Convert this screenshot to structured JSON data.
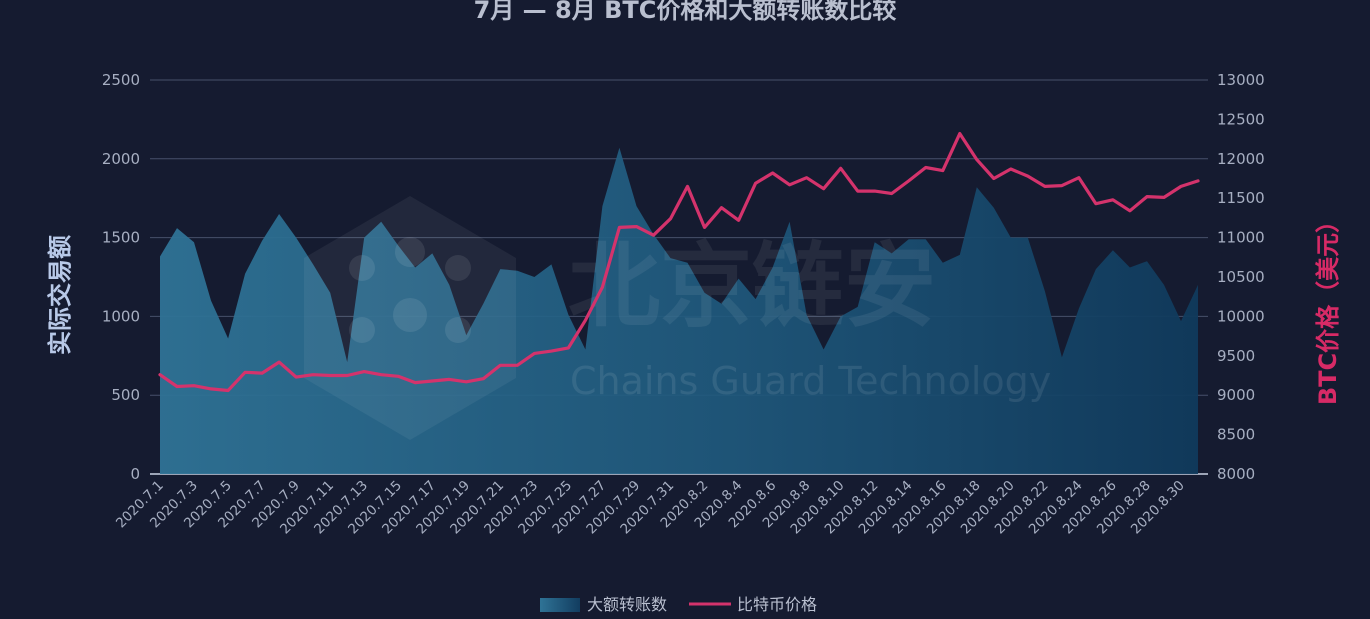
{
  "chart_data": {
    "type": "line",
    "title": "7月 — 8月 BTC价格和大额转账数比较",
    "y_left_label": "实际交易额",
    "y_right_label": "BTC价格（美元）",
    "y_left_range": [
      0,
      2500
    ],
    "y_left_ticks": [
      "0",
      "500",
      "1000",
      "1500",
      "2000",
      "2500"
    ],
    "y_right_range": [
      8000,
      13000
    ],
    "y_right_ticks": [
      "8000",
      "8500",
      "9000",
      "9500",
      "10000",
      "10500",
      "11000",
      "11500",
      "12000",
      "12500",
      "13000"
    ],
    "grid": true,
    "x": [
      "2020.7.1",
      "2020.7.2",
      "2020.7.3",
      "2020.7.4",
      "2020.7.5",
      "2020.7.6",
      "2020.7.7",
      "2020.7.8",
      "2020.7.9",
      "2020.7.10",
      "2020.7.11",
      "2020.7.12",
      "2020.7.13",
      "2020.7.14",
      "2020.7.15",
      "2020.7.16",
      "2020.7.17",
      "2020.7.18",
      "2020.7.19",
      "2020.7.20",
      "2020.7.21",
      "2020.7.22",
      "2020.7.23",
      "2020.7.24",
      "2020.7.25",
      "2020.7.26",
      "2020.7.27",
      "2020.7.28",
      "2020.7.29",
      "2020.7.30",
      "2020.7.31",
      "2020.8.1",
      "2020.8.2",
      "2020.8.3",
      "2020.8.4",
      "2020.8.5",
      "2020.8.6",
      "2020.8.7",
      "2020.8.8",
      "2020.8.9",
      "2020.8.10",
      "2020.8.11",
      "2020.8.12",
      "2020.8.13",
      "2020.8.14",
      "2020.8.15",
      "2020.8.16",
      "2020.8.17",
      "2020.8.18",
      "2020.8.19",
      "2020.8.20",
      "2020.8.21",
      "2020.8.22",
      "2020.8.23",
      "2020.8.24",
      "2020.8.25",
      "2020.8.26",
      "2020.8.27",
      "2020.8.28",
      "2020.8.29",
      "2020.8.30",
      "2020.8.31"
    ],
    "x_tick_labels": [
      "2020.7.1",
      "2020.7.3",
      "2020.7.5",
      "2020.7.7",
      "2020.7.9",
      "2020.7.11",
      "2020.7.13",
      "2020.7.15",
      "2020.7.17",
      "2020.7.19",
      "2020.7.21",
      "2020.7.23",
      "2020.7.25",
      "2020.7.27",
      "2020.7.29",
      "2020.7.31",
      "2020.8.2",
      "2020.8.4",
      "2020.8.6",
      "2020.8.8",
      "2020.8.10",
      "2020.8.12",
      "2020.8.14",
      "2020.8.16",
      "2020.8.18",
      "2020.8.20",
      "2020.8.22",
      "2020.8.24",
      "2020.8.26",
      "2020.8.28",
      "2020.8.30"
    ],
    "series": [
      {
        "name": "大额转账数",
        "type": "area",
        "axis": "left",
        "values": [
          1380,
          1560,
          1470,
          1100,
          860,
          1270,
          1480,
          1650,
          1500,
          1330,
          1150,
          710,
          1500,
          1600,
          1450,
          1310,
          1400,
          1200,
          880,
          1080,
          1300,
          1290,
          1250,
          1330,
          1010,
          790,
          1700,
          2070,
          1700,
          1520,
          1370,
          1340,
          1150,
          1080,
          1240,
          1110,
          1310,
          1600,
          1010,
          790,
          1000,
          1060,
          1470,
          1400,
          1490,
          1490,
          1340,
          1390,
          1820,
          1690,
          1500,
          1500,
          1160,
          740,
          1050,
          1300,
          1420,
          1310,
          1350,
          1200,
          970,
          1200
        ]
      },
      {
        "name": "比特币价格",
        "type": "line",
        "axis": "right",
        "values": [
          9260,
          9110,
          9120,
          9080,
          9060,
          9290,
          9280,
          9420,
          9230,
          9260,
          9250,
          9250,
          9300,
          9260,
          9240,
          9160,
          9180,
          9200,
          9170,
          9210,
          9380,
          9380,
          9530,
          9560,
          9600,
          9950,
          10370,
          11130,
          11140,
          11030,
          11240,
          11650,
          11130,
          11380,
          11220,
          11690,
          11820,
          11670,
          11760,
          11620,
          11880,
          11590,
          11590,
          11560,
          11720,
          11890,
          11850,
          12320,
          11990,
          11750,
          11870,
          11780,
          11650,
          11660,
          11760,
          11430,
          11480,
          11340,
          11520,
          11510,
          11650,
          11720
        ]
      }
    ],
    "legend_position": "bottom-center",
    "colors": {
      "area": "#2a6a8c",
      "line": "#d4336c",
      "background": "#151b30",
      "grid": "#46506a"
    }
  },
  "watermark": {
    "cn": "北京链安",
    "en": "Chains Guard Technology"
  }
}
